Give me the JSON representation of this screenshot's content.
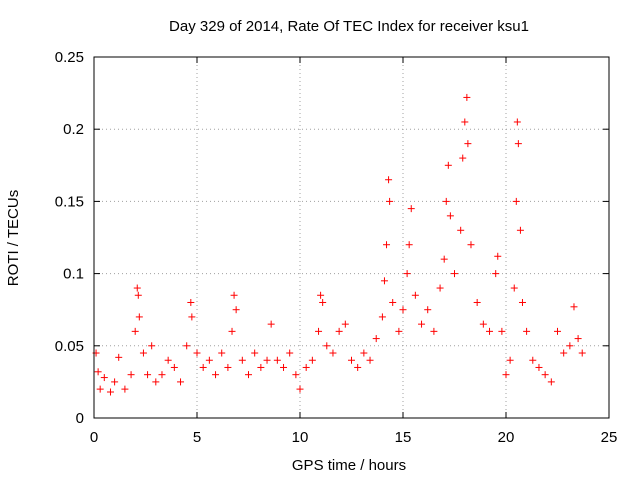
{
  "chart_data": {
    "type": "scatter",
    "title": "Day 329 of 2014, Rate Of TEC Index for receiver ksu1",
    "xlabel": "GPS time / hours",
    "ylabel": "ROTI / TECUs",
    "xlim": [
      0,
      25
    ],
    "ylim": [
      0,
      0.25
    ],
    "xticks": [
      0,
      5,
      10,
      15,
      20,
      25
    ],
    "yticks": [
      0,
      0.05,
      0.1,
      0.15,
      0.2,
      0.25
    ],
    "ytick_labels": [
      "0",
      "0.05",
      "0.1",
      "0.15",
      "0.2",
      "0.25"
    ],
    "grid": true,
    "marker": "+",
    "color": "#ff0000",
    "series": [
      {
        "name": "ROTI",
        "points": [
          [
            0.1,
            0.045
          ],
          [
            0.2,
            0.032
          ],
          [
            0.3,
            0.02
          ],
          [
            0.5,
            0.028
          ],
          [
            0.8,
            0.018
          ],
          [
            1.0,
            0.025
          ],
          [
            1.2,
            0.042
          ],
          [
            1.5,
            0.02
          ],
          [
            1.8,
            0.03
          ],
          [
            2.0,
            0.06
          ],
          [
            2.1,
            0.09
          ],
          [
            2.15,
            0.085
          ],
          [
            2.2,
            0.07
          ],
          [
            2.4,
            0.045
          ],
          [
            2.6,
            0.03
          ],
          [
            2.8,
            0.05
          ],
          [
            3.0,
            0.025
          ],
          [
            3.3,
            0.03
          ],
          [
            3.6,
            0.04
          ],
          [
            3.9,
            0.035
          ],
          [
            4.2,
            0.025
          ],
          [
            4.5,
            0.05
          ],
          [
            4.7,
            0.08
          ],
          [
            4.75,
            0.07
          ],
          [
            5.0,
            0.045
          ],
          [
            5.3,
            0.035
          ],
          [
            5.6,
            0.04
          ],
          [
            5.9,
            0.03
          ],
          [
            6.2,
            0.045
          ],
          [
            6.5,
            0.035
          ],
          [
            6.7,
            0.06
          ],
          [
            6.8,
            0.085
          ],
          [
            6.9,
            0.075
          ],
          [
            7.2,
            0.04
          ],
          [
            7.5,
            0.03
          ],
          [
            7.8,
            0.045
          ],
          [
            8.1,
            0.035
          ],
          [
            8.4,
            0.04
          ],
          [
            8.6,
            0.065
          ],
          [
            8.9,
            0.04
          ],
          [
            9.2,
            0.035
          ],
          [
            9.5,
            0.045
          ],
          [
            9.8,
            0.03
          ],
          [
            10.0,
            0.02
          ],
          [
            10.3,
            0.035
          ],
          [
            10.6,
            0.04
          ],
          [
            10.9,
            0.06
          ],
          [
            11.0,
            0.085
          ],
          [
            11.1,
            0.08
          ],
          [
            11.3,
            0.05
          ],
          [
            11.6,
            0.045
          ],
          [
            11.9,
            0.06
          ],
          [
            12.2,
            0.065
          ],
          [
            12.5,
            0.04
          ],
          [
            12.8,
            0.035
          ],
          [
            13.1,
            0.045
          ],
          [
            13.4,
            0.04
          ],
          [
            13.7,
            0.055
          ],
          [
            14.0,
            0.07
          ],
          [
            14.1,
            0.095
          ],
          [
            14.2,
            0.12
          ],
          [
            14.3,
            0.165
          ],
          [
            14.35,
            0.15
          ],
          [
            14.5,
            0.08
          ],
          [
            14.8,
            0.06
          ],
          [
            15.0,
            0.075
          ],
          [
            15.2,
            0.1
          ],
          [
            15.3,
            0.12
          ],
          [
            15.4,
            0.145
          ],
          [
            15.6,
            0.085
          ],
          [
            15.9,
            0.065
          ],
          [
            16.2,
            0.075
          ],
          [
            16.5,
            0.06
          ],
          [
            16.8,
            0.09
          ],
          [
            17.0,
            0.11
          ],
          [
            17.1,
            0.15
          ],
          [
            17.2,
            0.175
          ],
          [
            17.3,
            0.14
          ],
          [
            17.5,
            0.1
          ],
          [
            17.8,
            0.13
          ],
          [
            17.9,
            0.18
          ],
          [
            18.0,
            0.205
          ],
          [
            18.1,
            0.222
          ],
          [
            18.15,
            0.19
          ],
          [
            18.3,
            0.12
          ],
          [
            18.6,
            0.08
          ],
          [
            18.9,
            0.065
          ],
          [
            19.2,
            0.06
          ],
          [
            19.5,
            0.1
          ],
          [
            19.6,
            0.112
          ],
          [
            19.8,
            0.06
          ],
          [
            20.0,
            0.03
          ],
          [
            20.2,
            0.04
          ],
          [
            20.4,
            0.09
          ],
          [
            20.5,
            0.15
          ],
          [
            20.55,
            0.205
          ],
          [
            20.6,
            0.19
          ],
          [
            20.7,
            0.13
          ],
          [
            20.8,
            0.08
          ],
          [
            21.0,
            0.06
          ],
          [
            21.3,
            0.04
          ],
          [
            21.6,
            0.035
          ],
          [
            21.9,
            0.03
          ],
          [
            22.2,
            0.025
          ],
          [
            22.5,
            0.06
          ],
          [
            22.8,
            0.045
          ],
          [
            23.1,
            0.05
          ],
          [
            23.3,
            0.077
          ],
          [
            23.5,
            0.055
          ],
          [
            23.7,
            0.045
          ]
        ]
      }
    ]
  }
}
